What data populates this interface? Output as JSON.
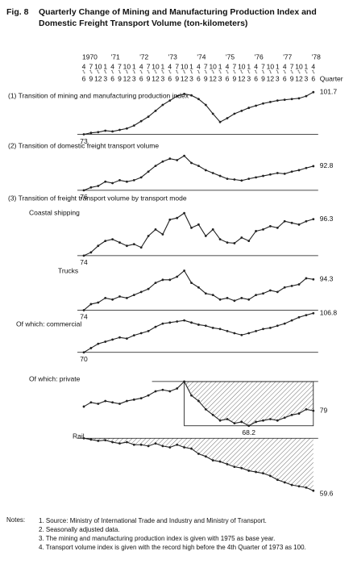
{
  "figure_label": "Fig. 8",
  "title": "Quarterly Change of Mining and Manufacturing Production Index and Domestic Freight Transport Volume (ton-kilometers)",
  "x_axis": {
    "years": [
      "1970",
      "'71",
      "'72",
      "'73",
      "'74",
      "'75",
      "'76",
      "'77",
      "'78"
    ],
    "quarters_top": [
      "4",
      "7",
      "10",
      "1",
      "4",
      "7",
      "10",
      "1",
      "4",
      "7",
      "10",
      "1",
      "4",
      "7",
      "10",
      "1",
      "4",
      "7",
      "10",
      "1",
      "4",
      "7",
      "10",
      "1",
      "4",
      "7",
      "10",
      "1",
      "4",
      "7",
      "10",
      "1",
      "4"
    ],
    "quarters_bottom": [
      "6",
      "9",
      "12",
      "3",
      "6",
      "9",
      "12",
      "3",
      "6",
      "9",
      "12",
      "3",
      "6",
      "9",
      "12",
      "3",
      "6",
      "9",
      "12",
      "3",
      "6",
      "9",
      "12",
      "3",
      "6",
      "9",
      "12",
      "3",
      "6",
      "9",
      "12",
      "3",
      "6"
    ],
    "label": "Quarter"
  },
  "section_3_title": "(3)  Transition of freight transport volume by transport mode",
  "chart_data": [
    {
      "type": "line",
      "title": "(1)  Transition of mining and manufacturing production index",
      "color": "#222",
      "values": [
        73,
        74,
        74.5,
        75.5,
        75,
        76,
        77,
        79,
        82,
        85,
        89,
        93,
        96,
        99,
        100.5,
        99.5,
        97,
        93,
        87,
        81.4,
        84,
        87,
        89,
        91,
        92.5,
        94,
        95,
        96,
        96.5,
        97,
        97.5,
        99,
        101.7
      ],
      "ylim": [
        70,
        104
      ]
    },
    {
      "type": "line",
      "title": "(2)  Transition of domestic freight transport volume",
      "color": "#222",
      "values": [
        76,
        78,
        79,
        82,
        81,
        83,
        82,
        83,
        85,
        89,
        93,
        96,
        98,
        97,
        100,
        95,
        93,
        90,
        88,
        86,
        84,
        83.5,
        82.8,
        84,
        85,
        86,
        87,
        88,
        87.5,
        89,
        90,
        91.5,
        92.8
      ],
      "ylim": [
        72,
        104
      ]
    },
    {
      "type": "line",
      "title": "Coastal shipping",
      "color": "#222",
      "values": [
        74,
        76,
        80,
        83,
        84,
        82,
        80,
        81,
        79,
        86,
        90,
        87,
        96,
        97,
        100,
        91,
        93,
        86,
        90,
        84,
        82,
        81.6,
        85,
        83,
        89,
        90,
        92,
        91,
        95,
        94,
        93,
        95,
        96.3
      ],
      "ylim": [
        70,
        104
      ]
    },
    {
      "type": "line",
      "title": "Trucks",
      "color": "#222",
      "values": [
        74,
        78,
        79,
        82,
        81,
        83,
        82,
        84,
        86,
        88,
        92,
        94,
        94,
        96,
        100,
        92,
        89,
        85,
        84,
        81,
        82,
        80.2,
        82,
        81,
        84,
        85,
        87,
        86,
        89,
        90,
        91,
        95,
        94.3
      ],
      "ylim": [
        70,
        104
      ]
    },
    {
      "type": "line",
      "title": "Of which:  commercial",
      "color": "#222",
      "values": [
        70,
        74,
        78,
        80,
        82,
        84,
        83,
        86,
        88,
        90,
        94,
        97,
        98,
        99,
        100,
        98,
        96,
        95,
        93,
        92,
        90,
        88,
        86.3,
        88,
        90,
        92,
        93,
        95,
        97,
        100,
        103,
        105,
        106.8
      ],
      "ylim": [
        66,
        110
      ]
    },
    {
      "type": "line",
      "title": "Of which:  private",
      "color": "#222",
      "values": [
        82,
        85,
        84,
        86,
        85,
        84,
        86,
        87,
        88,
        90,
        93,
        94,
        93,
        95,
        100,
        90,
        86,
        80,
        76,
        72,
        73,
        70,
        71,
        68.2,
        71,
        72,
        73,
        72,
        74,
        76,
        77,
        80,
        79.0
      ],
      "ylim": [
        64,
        104
      ]
    },
    {
      "type": "line",
      "title": "Rail",
      "color": "#222",
      "values": [
        100,
        99,
        98,
        98.5,
        97,
        96,
        97,
        95,
        95,
        94,
        96,
        94,
        93,
        95,
        93,
        92,
        88,
        86,
        83,
        82,
        80,
        78,
        77,
        75,
        74,
        73,
        71,
        68,
        66,
        64,
        63,
        62,
        59.6
      ],
      "ylim": [
        56,
        102
      ]
    }
  ],
  "notes": {
    "heading": "Notes:",
    "items": [
      "1.  Source:  Ministry of International Trade and Industry and Ministry of Transport.",
      "2.  Seasonally adjusted data.",
      "3.  The mining and manufacturing production index is given with 1975 as base year.",
      "4.  Transport volume index is given with the record high before the 4th Quarter of 1973 as 100."
    ]
  }
}
